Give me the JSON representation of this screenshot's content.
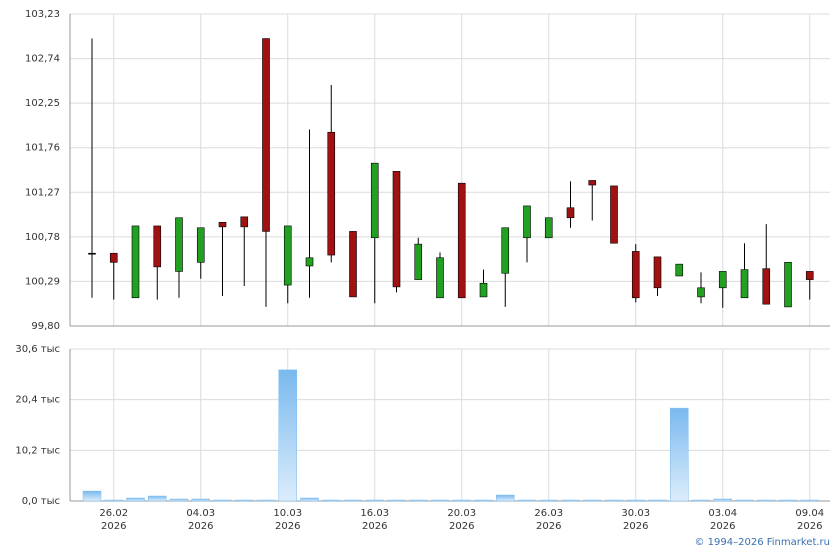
{
  "chart_data": [
    {
      "type": "candlestick",
      "open": [
        100.6,
        100.6,
        100.11,
        100.9,
        100.4,
        100.5,
        100.94,
        101.0,
        102.96,
        100.25,
        100.46,
        101.93,
        100.84,
        100.77,
        101.5,
        100.31,
        100.11,
        101.37,
        100.12,
        100.38,
        100.77,
        100.77,
        101.1,
        101.4,
        101.34,
        100.62,
        100.56,
        100.35,
        100.12,
        100.22,
        100.11,
        100.43,
        100.01,
        100.4
      ],
      "high": [
        102.96,
        100.6,
        100.9,
        100.9,
        100.99,
        100.88,
        100.94,
        101.0,
        102.96,
        100.9,
        101.96,
        102.45,
        100.84,
        101.59,
        101.5,
        100.77,
        100.61,
        101.37,
        100.42,
        100.88,
        101.12,
        100.99,
        101.39,
        101.4,
        101.34,
        100.7,
        100.56,
        100.48,
        100.39,
        100.4,
        100.71,
        100.92,
        100.5,
        100.4
      ],
      "low": [
        100.11,
        100.09,
        100.11,
        100.09,
        100.11,
        100.32,
        100.13,
        100.24,
        100.01,
        100.05,
        100.11,
        100.5,
        100.12,
        100.05,
        100.17,
        100.31,
        100.11,
        100.11,
        100.12,
        100.01,
        100.5,
        100.77,
        100.88,
        100.96,
        100.71,
        100.06,
        100.13,
        100.35,
        100.05,
        100.0,
        100.11,
        100.04,
        100.01,
        100.09
      ],
      "close": [
        100.6,
        100.5,
        100.9,
        100.45,
        100.99,
        100.88,
        100.89,
        100.89,
        100.84,
        100.9,
        100.55,
        100.58,
        100.12,
        101.59,
        100.23,
        100.7,
        100.55,
        100.11,
        100.27,
        100.88,
        101.12,
        100.99,
        100.99,
        101.35,
        100.71,
        100.11,
        100.22,
        100.48,
        100.22,
        100.4,
        100.42,
        100.04,
        100.5,
        100.31
      ],
      "up_color": "#22a022",
      "down_color": "#a01212",
      "ylim": [
        99.8,
        103.23
      ],
      "yticks": [
        {
          "value": 99.8,
          "label": "99,80"
        },
        {
          "value": 100.29,
          "label": "100,29"
        },
        {
          "value": 100.78,
          "label": "100,78"
        },
        {
          "value": 101.27,
          "label": "101,27"
        },
        {
          "value": 101.76,
          "label": "101,76"
        },
        {
          "value": 102.25,
          "label": "102,25"
        },
        {
          "value": 102.74,
          "label": "102,74"
        },
        {
          "value": 103.23,
          "label": "103,23"
        }
      ],
      "grid": true
    },
    {
      "type": "bar",
      "categories": [
        null,
        "26.02\n2026",
        null,
        null,
        null,
        "04.03\n2026",
        null,
        null,
        null,
        "10.03\n2026",
        null,
        null,
        null,
        "16.03\n2026",
        null,
        null,
        null,
        "20.03\n2026",
        null,
        null,
        null,
        "26.03\n2026",
        null,
        null,
        null,
        "30.03\n2026",
        null,
        null,
        null,
        "03.04\n2026",
        null,
        null,
        null,
        "09.04\n2026"
      ],
      "values": [
        2.0,
        0.2,
        0.6,
        1.0,
        0.4,
        0.4,
        0.2,
        0.2,
        0.2,
        26.4,
        0.6,
        0.2,
        0.2,
        0.2,
        0.2,
        0.2,
        0.2,
        0.2,
        0.2,
        1.2,
        0.2,
        0.2,
        0.2,
        0.2,
        0.2,
        0.2,
        0.2,
        18.7,
        0.2,
        0.4,
        0.2,
        0.2,
        0.2,
        0.2
      ],
      "color": "#7dbdf0",
      "ylim": [
        0,
        30.6
      ],
      "yticks": [
        {
          "value": 0,
          "label": "0,0 тыс"
        },
        {
          "value": 10.2,
          "label": "10,2 тыс"
        },
        {
          "value": 20.4,
          "label": "20,4 тыс"
        },
        {
          "value": 30.6,
          "label": "30,6 тыс"
        }
      ],
      "grid": true,
      "source": "© 1994–2026 Finmarket.ru"
    }
  ]
}
